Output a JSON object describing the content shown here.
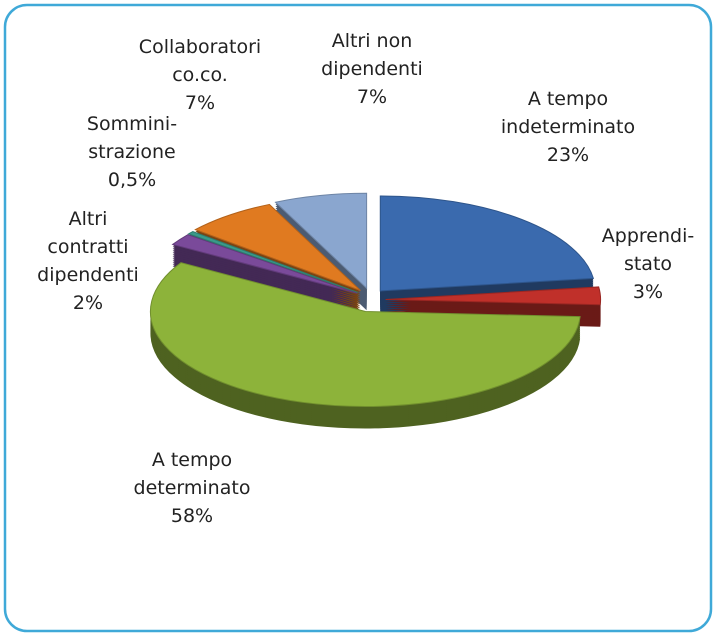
{
  "chart_data": {
    "type": "pie",
    "categories": [
      "A tempo\nindeterminato",
      "Apprendi-\nstato",
      "A tempo\ndeterminato",
      "Altri\ncontratti\ndipendenti",
      "Sommini-\nstrazione",
      "Collaboratori\nco.co.",
      "Altri non\ndipendenti"
    ],
    "values": [
      23,
      3,
      58,
      2,
      0.5,
      7,
      7
    ],
    "value_labels": [
      "23%",
      "3%",
      "58%",
      "2%",
      "0,5%",
      "7%",
      "7%"
    ],
    "colors": [
      "#3a6aae",
      "#c0302a",
      "#8db33a",
      "#7a4a9a",
      "#3a9a8a",
      "#e07a20",
      "#8aa6cf"
    ]
  }
}
